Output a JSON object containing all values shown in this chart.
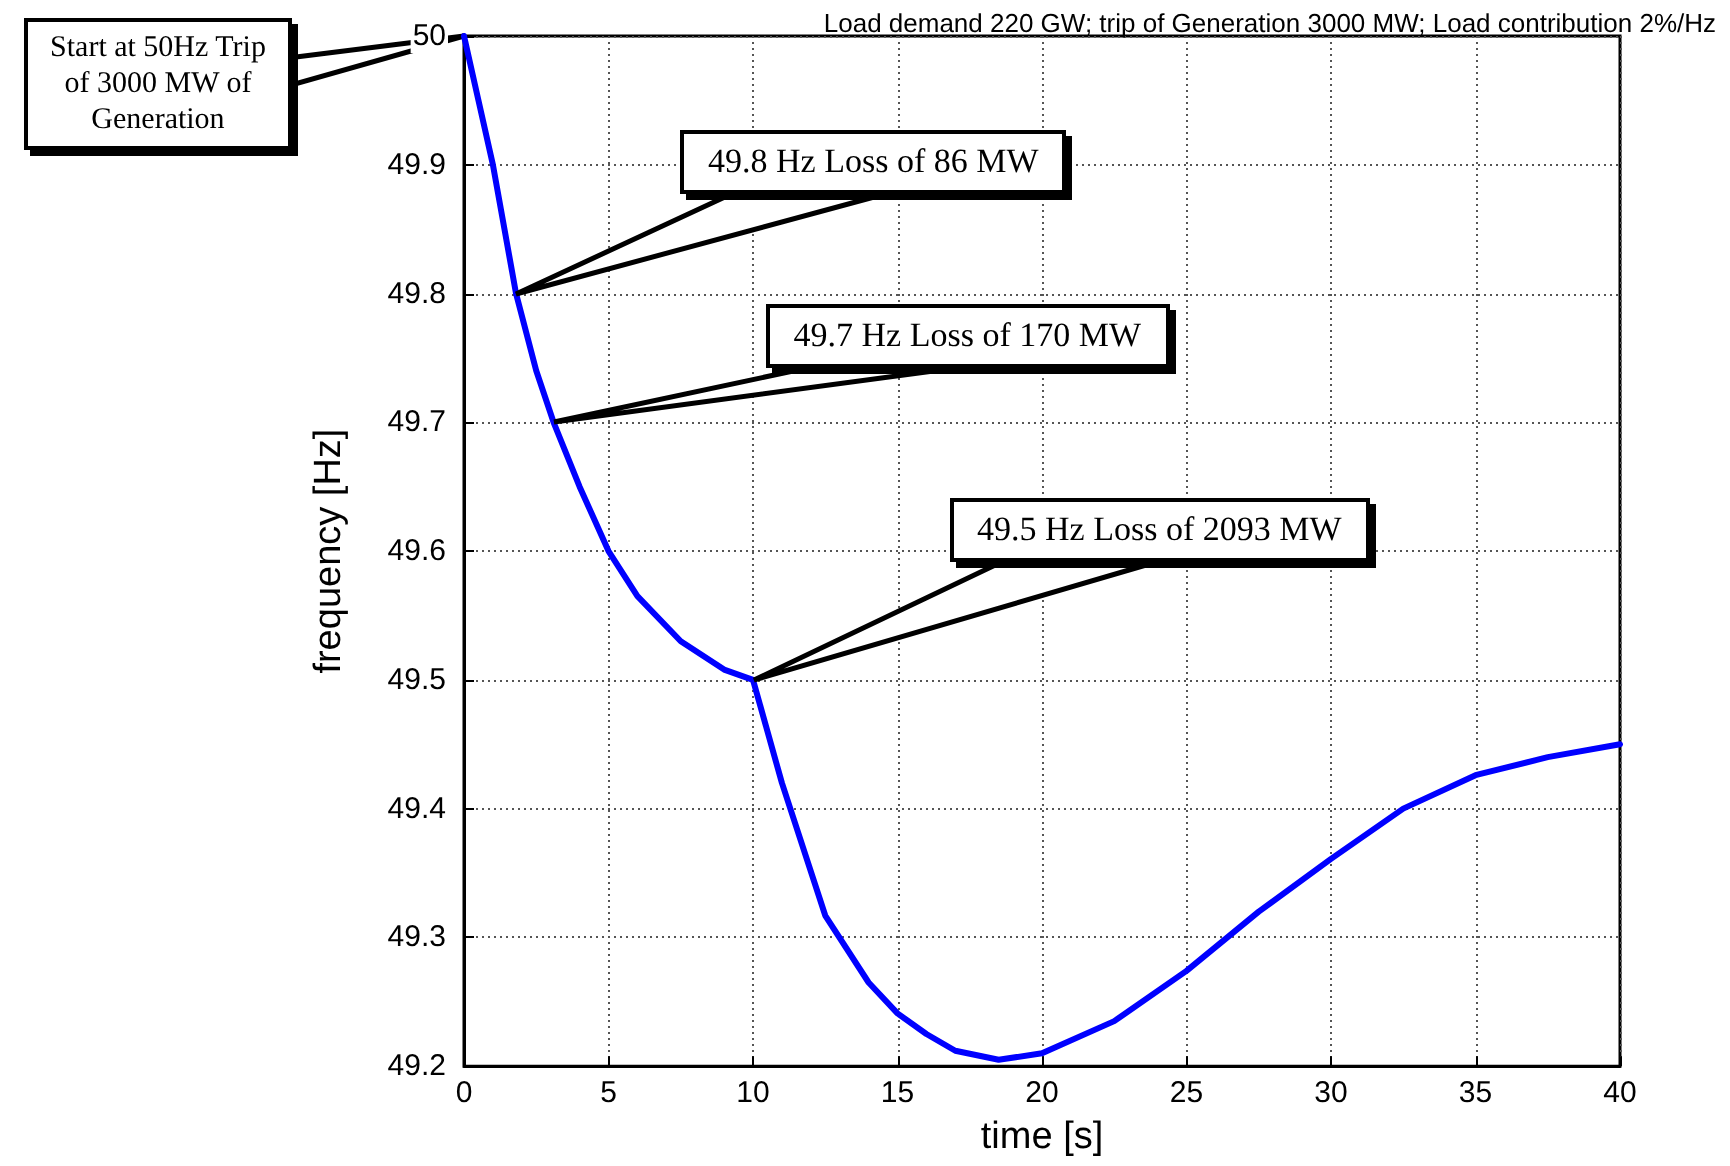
{
  "chart_data": {
    "type": "line",
    "title": "Load demand 220 GW; trip of Generation 3000 MW; Load contribution 2%/Hz",
    "xlabel": "time [s]",
    "ylabel": "frequency [Hz]",
    "x": [
      0,
      0.5,
      1,
      1.8,
      2.5,
      3.1,
      4,
      5,
      6,
      7.5,
      9,
      10,
      11,
      12.5,
      14,
      15,
      16,
      17,
      18.5,
      20,
      22.5,
      25,
      27.5,
      30,
      32.5,
      35,
      37.5,
      40
    ],
    "series": [
      {
        "color": "#0000ff",
        "values": [
          50,
          49.95,
          49.9,
          49.8,
          49.74,
          49.7,
          49.65,
          49.6,
          49.565,
          49.53,
          49.508,
          49.5,
          49.42,
          49.317,
          49.265,
          49.241,
          49.225,
          49.212,
          49.205,
          49.21,
          49.235,
          49.274,
          49.32,
          49.361,
          49.4,
          49.426,
          49.44,
          49.45
        ]
      }
    ],
    "xlim": [
      0,
      40
    ],
    "xticks": [
      0,
      5,
      10,
      15,
      20,
      25,
      30,
      35,
      40
    ],
    "ylim": [
      49.2,
      50
    ],
    "yticks": [
      49.2,
      49.3,
      49.4,
      49.5,
      49.6,
      49.7,
      49.8,
      49.9,
      50
    ],
    "grid": true,
    "marker": "none",
    "line_style": "solid",
    "annotations": [
      {
        "text": "Start at 50Hz Trip of 3000 MW of Generation",
        "x": 0,
        "y": 50
      },
      {
        "text": "49.8 Hz Loss of 86 MW",
        "x": 1.8,
        "y": 49.8
      },
      {
        "text": "49.7 Hz Loss of 170 MW",
        "x": 3.1,
        "y": 49.7
      },
      {
        "text": "49.5 Hz Loss of 2093 MW",
        "x": 10,
        "y": 49.5
      }
    ]
  }
}
